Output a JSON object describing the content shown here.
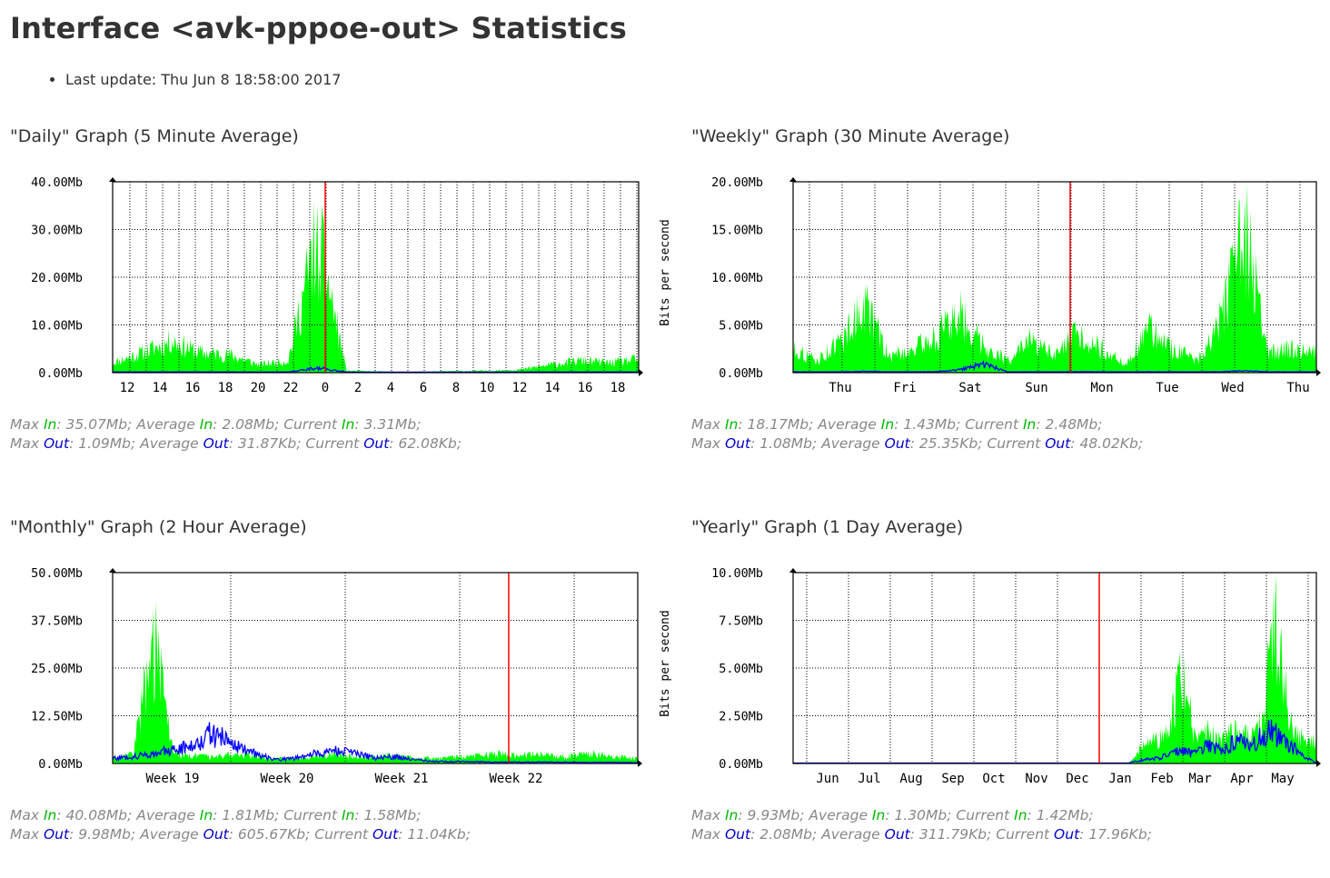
{
  "page": {
    "title": "Interface <avk-pppoe-out> Statistics",
    "last_update": "Last update: Thu Jun 8 18:58:00 2017"
  },
  "colors": {
    "in": "#00ff00",
    "out": "#0000ff",
    "now": "#ff0000",
    "grid": "#000000",
    "bg": "#ffffff"
  },
  "chart_data": [
    {
      "type": "area",
      "title": "\"Daily\" Graph (5 Minute Average)",
      "ylabel": "",
      "ylim": [
        0,
        40
      ],
      "y_ticks": [
        "0.00Mb",
        "10.00Mb",
        "20.00Mb",
        "30.00Mb",
        "40.00Mb"
      ],
      "x_ticks": [
        "12",
        "14",
        "16",
        "18",
        "20",
        "22",
        "0",
        "2",
        "4",
        "6",
        "8",
        "10",
        "12",
        "14",
        "16",
        "18"
      ],
      "series": [
        {
          "name": "In",
          "color": "#00ff00",
          "approx_profile_mbps": [
            2.5,
            5.0,
            8.0,
            5.0,
            4.5,
            2.0,
            3.0,
            35.0,
            0.5,
            0.3,
            0.2,
            0.3,
            0.4,
            0.5,
            0.8,
            2.0,
            3.0,
            2.5,
            3.3
          ]
        },
        {
          "name": "Out",
          "color": "#0000ff",
          "approx_profile_mbps": [
            0.05,
            0.06,
            0.07,
            0.06,
            0.05,
            0.04,
            0.05,
            1.09,
            0.03,
            0.02,
            0.02,
            0.02,
            0.03,
            0.03,
            0.04,
            0.05,
            0.06,
            0.06,
            0.06
          ]
        }
      ],
      "stats": {
        "in": {
          "max": "35.07Mb",
          "average": "2.08Mb",
          "current": "3.31Mb"
        },
        "out": {
          "max": "1.09Mb",
          "average": "31.87Kb",
          "current": "62.08Kb"
        }
      }
    },
    {
      "type": "area",
      "title": "\"Weekly\" Graph (30 Minute Average)",
      "ylabel": "Bits per second",
      "ylim": [
        0,
        20
      ],
      "y_ticks": [
        "0.00Mb",
        "5.00Mb",
        "10.00Mb",
        "15.00Mb",
        "20.00Mb"
      ],
      "x_ticks": [
        "Thu",
        "Fri",
        "Sat",
        "Sun",
        "Mon",
        "Tue",
        "Wed",
        "Thu"
      ],
      "series": [
        {
          "name": "In",
          "color": "#00ff00",
          "approx_profile_mbps": [
            3.0,
            1.5,
            4.0,
            8.8,
            2.0,
            3.0,
            4.5,
            7.5,
            3.5,
            1.5,
            4.0,
            2.0,
            5.0,
            3.0,
            1.0,
            5.5,
            3.0,
            1.5,
            6.5,
            18.2,
            2.5,
            3.0,
            2.5
          ]
        },
        {
          "name": "Out",
          "color": "#0000ff",
          "approx_profile_mbps": [
            0.05,
            0.04,
            0.05,
            0.1,
            0.05,
            0.05,
            0.06,
            0.3,
            1.08,
            0.04,
            0.05,
            0.04,
            0.06,
            0.05,
            0.04,
            0.05,
            0.05,
            0.04,
            0.06,
            0.2,
            0.05,
            0.05,
            0.05
          ]
        }
      ],
      "stats": {
        "in": {
          "max": "18.17Mb",
          "average": "1.43Mb",
          "current": "2.48Mb"
        },
        "out": {
          "max": "1.08Mb",
          "average": "25.35Kb",
          "current": "48.02Kb"
        }
      }
    },
    {
      "type": "area",
      "title": "\"Monthly\" Graph (2 Hour Average)",
      "ylabel": "",
      "ylim": [
        0,
        50
      ],
      "y_ticks": [
        "0.00Mb",
        "12.50Mb",
        "25.00Mb",
        "37.50Mb",
        "50.00Mb"
      ],
      "x_ticks": [
        "Week 19",
        "Week 20",
        "Week 21",
        "Week 22"
      ],
      "series": [
        {
          "name": "In",
          "color": "#00ff00",
          "approx_profile_mbps": [
            2.0,
            3.0,
            40.0,
            3.0,
            2.5,
            2.0,
            3.0,
            2.5,
            1.5,
            2.0,
            2.0,
            3.0,
            2.0,
            2.0,
            2.5,
            2.0,
            1.5,
            2.0,
            2.5,
            3.0,
            2.5,
            3.0,
            2.0,
            2.5,
            3.0,
            2.0,
            1.6
          ]
        },
        {
          "name": "Out",
          "color": "#0000ff",
          "approx_profile_mbps": [
            1.5,
            2.0,
            3.0,
            4.0,
            6.0,
            9.98,
            6.0,
            3.0,
            1.0,
            1.5,
            3.0,
            4.0,
            3.0,
            1.5,
            2.0,
            1.0,
            0.5,
            0.5,
            0.4,
            0.3,
            0.3,
            0.3,
            0.3,
            0.2,
            0.2,
            0.2,
            0.1
          ]
        }
      ],
      "stats": {
        "in": {
          "max": "40.08Mb",
          "average": "1.81Mb",
          "current": "1.58Mb"
        },
        "out": {
          "max": "9.98Mb",
          "average": "605.67Kb",
          "current": "11.04Kb"
        }
      }
    },
    {
      "type": "area",
      "title": "\"Yearly\" Graph (1 Day Average)",
      "ylabel": "Bits per second",
      "ylim": [
        0,
        10
      ],
      "y_ticks": [
        "0.00Mb",
        "2.50Mb",
        "5.00Mb",
        "7.50Mb",
        "10.00Mb"
      ],
      "x_ticks": [
        "Jun",
        "Jul",
        "Aug",
        "Sep",
        "Oct",
        "Nov",
        "Dec",
        "Jan",
        "Feb",
        "Mar",
        "Apr",
        "May"
      ],
      "series": [
        {
          "name": "In",
          "color": "#00ff00",
          "approx_profile_mbps": [
            0,
            0,
            0,
            0,
            0,
            0,
            0,
            0,
            0,
            0,
            0,
            0,
            0,
            0,
            0,
            0,
            0,
            0,
            0,
            0,
            0,
            0,
            0,
            0,
            0,
            0,
            1.0,
            1.5,
            2.0,
            5.8,
            1.5,
            2.0,
            1.5,
            2.0,
            1.8,
            2.5,
            9.93,
            2.5,
            1.5,
            1.42
          ]
        },
        {
          "name": "Out",
          "color": "#0000ff",
          "approx_profile_mbps": [
            0,
            0,
            0,
            0,
            0,
            0,
            0,
            0,
            0,
            0,
            0,
            0,
            0,
            0,
            0,
            0,
            0,
            0,
            0,
            0,
            0,
            0,
            0,
            0,
            0,
            0,
            0.2,
            0.3,
            0.5,
            0.8,
            0.6,
            1.2,
            0.7,
            1.5,
            1.0,
            1.8,
            2.08,
            1.2,
            0.5,
            0.02
          ]
        }
      ],
      "stats": {
        "in": {
          "max": "9.93Mb",
          "average": "1.30Mb",
          "current": "1.42Mb"
        },
        "out": {
          "max": "2.08Mb",
          "average": "311.79Kb",
          "current": "17.96Kb"
        }
      }
    }
  ]
}
